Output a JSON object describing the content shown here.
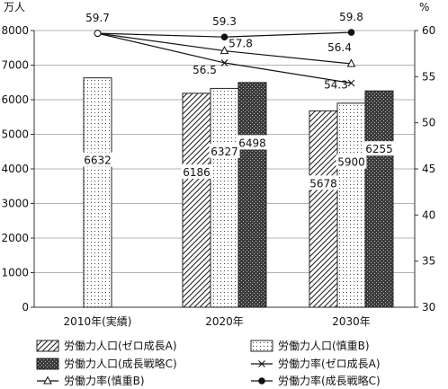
{
  "chart_data": {
    "type": "bar",
    "categories": [
      "2010年(実績)",
      "2020年",
      "2030年"
    ],
    "y_left": {
      "unit": "万人",
      "min": 0,
      "max": 8000,
      "step": 1000
    },
    "y_right": {
      "unit": "%",
      "min": 30,
      "max": 60,
      "step": 5
    },
    "bar_series": [
      {
        "name": "労働力人口(ゼロ成長A)",
        "fill": "hatch",
        "values": [
          null,
          6186,
          5678
        ]
      },
      {
        "name": "労働力人口(慎重B)",
        "fill": "dots",
        "values": [
          6632,
          6327,
          5900
        ]
      },
      {
        "name": "労働力人口(成長戦略C)",
        "fill": "dense",
        "values": [
          null,
          6498,
          6255
        ]
      }
    ],
    "line_series": [
      {
        "name": "労働力率(ゼロ成長A)",
        "marker": "x",
        "values": [
          59.7,
          56.5,
          54.3
        ]
      },
      {
        "name": "労働力率(慎重B)",
        "marker": "triangle",
        "values": [
          59.7,
          57.8,
          56.4
        ]
      },
      {
        "name": "労働力率(成長戦略C)",
        "marker": "dot",
        "values": [
          59.7,
          59.3,
          59.8
        ]
      }
    ],
    "grid": true,
    "legend_position": "bottom"
  }
}
